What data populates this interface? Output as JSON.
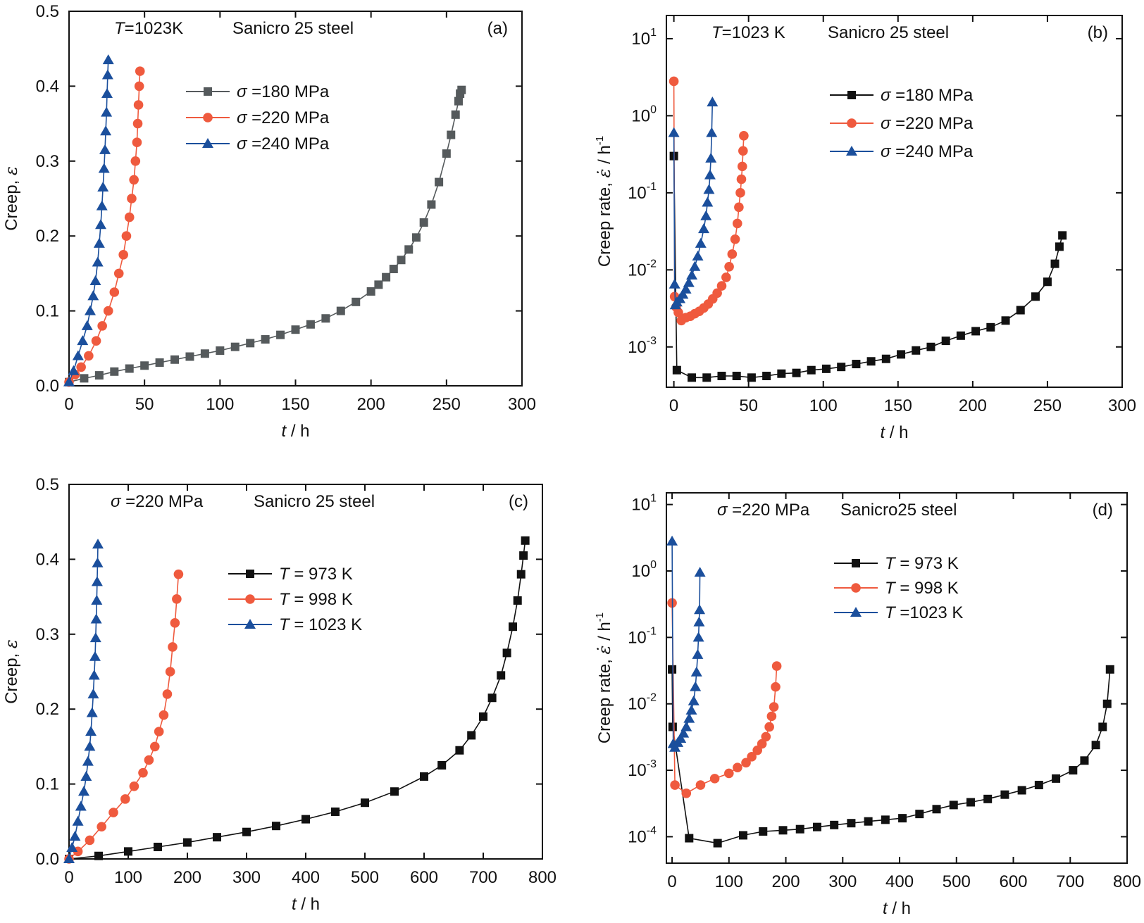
{
  "figure": {
    "panels": 4
  },
  "chart_data": [
    {
      "panel_id": "a",
      "type": "line",
      "panel_label": "(a)",
      "title_parts": [
        "T",
        "=1023K",
        "Sanicro 25 steel"
      ],
      "xlabel": [
        "t",
        " / h"
      ],
      "ylabel": [
        "Creep, ",
        "ε"
      ],
      "xlim": [
        0,
        300
      ],
      "ylim": [
        0,
        0.5
      ],
      "yscale": "linear",
      "xticks": [
        0,
        50,
        100,
        150,
        200,
        250,
        300
      ],
      "yticks": [
        0.0,
        0.1,
        0.2,
        0.3,
        0.4,
        0.5
      ],
      "ytick_labels": [
        "0.0",
        "0.1",
        "0.2",
        "0.3",
        "0.4",
        "0.5"
      ],
      "legend_position": "upper-middle",
      "series": [
        {
          "name": "σ =180 MPa",
          "label_parts": [
            "σ",
            " =180 MPa"
          ],
          "color": "#555a5c",
          "marker": "square",
          "x": [
            0,
            10,
            20,
            30,
            40,
            50,
            60,
            70,
            80,
            90,
            100,
            110,
            120,
            130,
            140,
            150,
            160,
            170,
            180,
            190,
            200,
            205,
            210,
            215,
            220,
            225,
            230,
            235,
            240,
            245,
            250,
            253,
            256,
            258,
            259,
            260
          ],
          "y": [
            0.005,
            0.01,
            0.014,
            0.019,
            0.023,
            0.027,
            0.031,
            0.035,
            0.039,
            0.043,
            0.047,
            0.052,
            0.057,
            0.062,
            0.068,
            0.075,
            0.082,
            0.09,
            0.1,
            0.112,
            0.126,
            0.135,
            0.145,
            0.156,
            0.168,
            0.182,
            0.198,
            0.218,
            0.242,
            0.272,
            0.31,
            0.335,
            0.362,
            0.38,
            0.39,
            0.395
          ]
        },
        {
          "name": "σ =220 MPa",
          "label_parts": [
            "σ",
            " =220 MPa"
          ],
          "color": "#ef5a3e",
          "marker": "circle",
          "x": [
            0,
            4,
            8,
            13,
            18,
            22,
            26,
            30,
            33,
            36,
            38,
            40,
            41.5,
            43,
            44,
            45,
            45.5,
            46,
            46.5,
            47
          ],
          "y": [
            0.005,
            0.015,
            0.025,
            0.04,
            0.06,
            0.08,
            0.1,
            0.125,
            0.15,
            0.175,
            0.2,
            0.225,
            0.25,
            0.275,
            0.3,
            0.325,
            0.35,
            0.375,
            0.4,
            0.42
          ]
        },
        {
          "name": "σ =240 MPa",
          "label_parts": [
            "σ",
            " =240 MPa"
          ],
          "color": "#1b4f9c",
          "marker": "triangle",
          "x": [
            0,
            3,
            6,
            9,
            12,
            14,
            16,
            17.5,
            19,
            20,
            21,
            21.8,
            22.5,
            23.2,
            23.8,
            24.3,
            24.8,
            25.2,
            25.6,
            26
          ],
          "y": [
            0.005,
            0.02,
            0.04,
            0.06,
            0.08,
            0.1,
            0.12,
            0.14,
            0.165,
            0.19,
            0.215,
            0.24,
            0.265,
            0.29,
            0.315,
            0.34,
            0.365,
            0.39,
            0.415,
            0.435
          ]
        }
      ]
    },
    {
      "panel_id": "b",
      "type": "line",
      "panel_label": "(b)",
      "title_parts": [
        "T",
        "=1023 K",
        "Sanicro 25 steel"
      ],
      "xlabel": [
        "t",
        " / h"
      ],
      "ylabel": [
        "Creep rate, ",
        "ε̇",
        " / h",
        "-1"
      ],
      "xlim": [
        -5,
        300
      ],
      "ylim": [
        0.0003,
        20
      ],
      "yscale": "log",
      "xticks": [
        0,
        50,
        100,
        150,
        200,
        250,
        300
      ],
      "yticks": [
        0.001,
        0.01,
        0.1,
        1,
        10
      ],
      "ytick_labels": [
        [
          "10",
          "-3"
        ],
        [
          "10",
          "-2"
        ],
        [
          "10",
          "-1"
        ],
        [
          "10",
          "0"
        ],
        [
          "10",
          "1"
        ]
      ],
      "legend_position": "upper-middle",
      "series": [
        {
          "name": "σ =180 MPa",
          "label_parts": [
            "σ",
            " =180 MPa"
          ],
          "color": "#111111",
          "marker": "square",
          "x": [
            0,
            2,
            12,
            22,
            32,
            42,
            52,
            62,
            72,
            82,
            92,
            102,
            112,
            122,
            132,
            142,
            152,
            162,
            172,
            182,
            192,
            202,
            212,
            222,
            232,
            242,
            250,
            255,
            258,
            260
          ],
          "y": [
            0.3,
            0.0005,
            0.0004,
            0.0004,
            0.00042,
            0.00042,
            0.0004,
            0.00042,
            0.00045,
            0.00046,
            0.0005,
            0.00052,
            0.00055,
            0.0006,
            0.00065,
            0.0007,
            0.0008,
            0.0009,
            0.001,
            0.0012,
            0.0014,
            0.0016,
            0.0018,
            0.0022,
            0.003,
            0.0045,
            0.007,
            0.012,
            0.02,
            0.028
          ]
        },
        {
          "name": "σ =220 MPa",
          "label_parts": [
            "σ",
            " =220 MPa"
          ],
          "color": "#ef5a3e",
          "marker": "circle",
          "x": [
            0,
            0.5,
            1.5,
            3,
            5,
            8,
            11,
            14,
            17,
            20,
            23,
            26,
            29,
            32,
            35,
            37,
            39,
            41,
            42.5,
            43.5,
            44.5,
            45.2,
            45.8,
            46.3,
            46.8
          ],
          "y": [
            2.8,
            0.0045,
            0.0033,
            0.0028,
            0.0022,
            0.0024,
            0.0025,
            0.0027,
            0.0029,
            0.0032,
            0.0036,
            0.0042,
            0.005,
            0.0062,
            0.008,
            0.011,
            0.016,
            0.025,
            0.04,
            0.065,
            0.1,
            0.15,
            0.22,
            0.35,
            0.55
          ]
        },
        {
          "name": "σ =240 MPa",
          "label_parts": [
            "σ",
            " =240 MPa"
          ],
          "color": "#1b4f9c",
          "marker": "triangle",
          "x": [
            0,
            0.5,
            1,
            2,
            4,
            6,
            8,
            10,
            12,
            14,
            16,
            18,
            20,
            21.5,
            22.5,
            23.5,
            24.2,
            24.8,
            25.3,
            25.8
          ],
          "y": [
            0.6,
            0.0065,
            0.0035,
            0.0038,
            0.0042,
            0.0048,
            0.0056,
            0.0068,
            0.0085,
            0.011,
            0.015,
            0.022,
            0.034,
            0.05,
            0.075,
            0.11,
            0.17,
            0.28,
            0.6,
            1.5
          ]
        }
      ]
    },
    {
      "panel_id": "c",
      "type": "line",
      "panel_label": "(c)",
      "title_parts": [
        "σ",
        " =220 MPa",
        "Sanicro 25 steel"
      ],
      "xlabel": [
        "t",
        " / h"
      ],
      "ylabel": [
        "Creep, ",
        "ε"
      ],
      "xlim": [
        0,
        800
      ],
      "ylim": [
        0,
        0.5
      ],
      "yscale": "linear",
      "xticks": [
        0,
        100,
        200,
        300,
        400,
        500,
        600,
        700,
        800
      ],
      "yticks": [
        0.0,
        0.1,
        0.2,
        0.3,
        0.4,
        0.5
      ],
      "ytick_labels": [
        "0.0",
        "0.1",
        "0.2",
        "0.3",
        "0.4",
        "0.5"
      ],
      "legend_position": "upper-middle",
      "series": [
        {
          "name": "T = 973 K",
          "label_parts": [
            "T",
            " = 973 K"
          ],
          "color": "#111111",
          "marker": "square",
          "x": [
            0,
            50,
            100,
            150,
            200,
            250,
            300,
            350,
            400,
            450,
            500,
            550,
            600,
            630,
            660,
            680,
            700,
            715,
            730,
            740,
            750,
            758,
            764,
            768,
            771
          ],
          "y": [
            0.0,
            0.004,
            0.01,
            0.016,
            0.022,
            0.029,
            0.036,
            0.044,
            0.053,
            0.063,
            0.075,
            0.09,
            0.11,
            0.125,
            0.145,
            0.165,
            0.19,
            0.215,
            0.245,
            0.275,
            0.31,
            0.345,
            0.38,
            0.405,
            0.425
          ]
        },
        {
          "name": "T = 998 K",
          "label_parts": [
            "T",
            " = 998 K"
          ],
          "color": "#ef5a3e",
          "marker": "circle",
          "x": [
            0,
            15,
            35,
            55,
            75,
            95,
            110,
            125,
            135,
            145,
            152,
            160,
            166,
            171,
            175,
            179,
            182,
            185
          ],
          "y": [
            0.0,
            0.01,
            0.025,
            0.043,
            0.062,
            0.08,
            0.097,
            0.115,
            0.132,
            0.15,
            0.17,
            0.192,
            0.22,
            0.25,
            0.283,
            0.315,
            0.347,
            0.38
          ]
        },
        {
          "name": "T = 1023 K",
          "label_parts": [
            "T",
            " = 1023 K"
          ],
          "color": "#1b4f9c",
          "marker": "triangle",
          "x": [
            0,
            5,
            10,
            15,
            20,
            25,
            29,
            32,
            35,
            37,
            39,
            41,
            42.5,
            44,
            45,
            46,
            46.8,
            47.5,
            48.2,
            48.8
          ],
          "y": [
            0.0,
            0.015,
            0.03,
            0.05,
            0.07,
            0.09,
            0.11,
            0.13,
            0.15,
            0.17,
            0.195,
            0.22,
            0.245,
            0.27,
            0.295,
            0.32,
            0.345,
            0.37,
            0.395,
            0.42
          ]
        }
      ]
    },
    {
      "panel_id": "d",
      "type": "line",
      "panel_label": "(d)",
      "title_parts": [
        "σ",
        " =220 MPa",
        "Sanicro25 steel"
      ],
      "xlabel": [
        "t",
        " / h"
      ],
      "ylabel": [
        "Creep rate, ",
        "ε̇",
        " / h",
        "-1"
      ],
      "xlim": [
        -10,
        800
      ],
      "ylim": [
        4e-05,
        15
      ],
      "yscale": "log",
      "xticks": [
        0,
        100,
        200,
        300,
        400,
        500,
        600,
        700,
        800
      ],
      "yticks": [
        0.0001,
        0.001,
        0.01,
        0.1,
        1,
        10
      ],
      "ytick_labels": [
        [
          "10",
          "-4"
        ],
        [
          "10",
          "-3"
        ],
        [
          "10",
          "-2"
        ],
        [
          "10",
          "-1"
        ],
        [
          "10",
          "0"
        ],
        [
          "10",
          "1"
        ]
      ],
      "legend_position": "upper-middle",
      "series": [
        {
          "name": "T = 973 K",
          "label_parts": [
            "T",
            " = 973 K"
          ],
          "color": "#111111",
          "marker": "square",
          "x": [
            0,
            1,
            30,
            80,
            125,
            160,
            195,
            225,
            255,
            285,
            315,
            345,
            375,
            405,
            435,
            465,
            495,
            525,
            555,
            585,
            615,
            645,
            675,
            705,
            725,
            745,
            757,
            765,
            770
          ],
          "y": [
            0.033,
            0.0045,
            9.5e-05,
            8e-05,
            0.000105,
            0.00012,
            0.000125,
            0.00013,
            0.00014,
            0.00015,
            0.00016,
            0.00017,
            0.00018,
            0.00019,
            0.00022,
            0.00026,
            0.0003,
            0.00033,
            0.00037,
            0.00043,
            0.0005,
            0.0006,
            0.00075,
            0.001,
            0.0014,
            0.0024,
            0.0045,
            0.01,
            0.033
          ]
        },
        {
          "name": "T = 998 K",
          "label_parts": [
            "T",
            " = 998 K"
          ],
          "color": "#ef5a3e",
          "marker": "circle",
          "x": [
            0,
            5,
            25,
            50,
            75,
            100,
            115,
            130,
            140,
            150,
            158,
            165,
            171,
            175,
            179,
            182,
            184
          ],
          "y": [
            0.33,
            0.0006,
            0.00045,
            0.0006,
            0.00075,
            0.0009,
            0.0011,
            0.0013,
            0.0016,
            0.002,
            0.0025,
            0.0032,
            0.0045,
            0.0065,
            0.009,
            0.018,
            0.037
          ]
        },
        {
          "name": "T =1023 K",
          "label_parts": [
            "T",
            " =1023 K"
          ],
          "color": "#1b4f9c",
          "marker": "triangle",
          "x": [
            0,
            2,
            5,
            10,
            15,
            20,
            25,
            30,
            34,
            38,
            41,
            43,
            45,
            46.5,
            47.5,
            48.3,
            49
          ],
          "y": [
            2.8,
            0.0025,
            0.0022,
            0.0026,
            0.003,
            0.0036,
            0.0045,
            0.006,
            0.008,
            0.011,
            0.018,
            0.03,
            0.055,
            0.1,
            0.17,
            0.26,
            0.95
          ]
        }
      ]
    }
  ]
}
